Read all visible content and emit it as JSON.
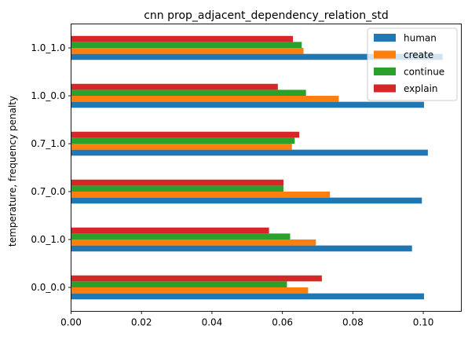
{
  "chart_data": {
    "type": "bar",
    "orientation": "horizontal",
    "title": "cnn prop_adjacent_dependency_relation_std",
    "xlabel": "",
    "ylabel": "temperature, frequency penalty",
    "categories": [
      "0.0_0.0",
      "0.0_1.0",
      "0.7_0.0",
      "0.7_1.0",
      "1.0_0.0",
      "1.0_1.0"
    ],
    "series": [
      {
        "name": "human",
        "color": "#1f77b4",
        "values": [
          0.1002,
          0.0968,
          0.0996,
          0.1013,
          0.1002,
          0.1055
        ]
      },
      {
        "name": "create",
        "color": "#ff7f0e",
        "values": [
          0.0673,
          0.0695,
          0.0735,
          0.0627,
          0.076,
          0.066
        ]
      },
      {
        "name": "continue",
        "color": "#2ca02c",
        "values": [
          0.0613,
          0.0622,
          0.0603,
          0.0635,
          0.0667,
          0.0655
        ]
      },
      {
        "name": "explain",
        "color": "#d62728",
        "values": [
          0.0712,
          0.0562,
          0.0603,
          0.0648,
          0.0587,
          0.063
        ]
      }
    ],
    "xlim": [
      0,
      0.1108
    ],
    "xticks": [
      "0.00",
      "0.02",
      "0.04",
      "0.06",
      "0.08",
      "0.10"
    ],
    "xtick_values": [
      0,
      0.02,
      0.04,
      0.06,
      0.08,
      0.1
    ],
    "grid": false,
    "legend_position": "top-right"
  }
}
